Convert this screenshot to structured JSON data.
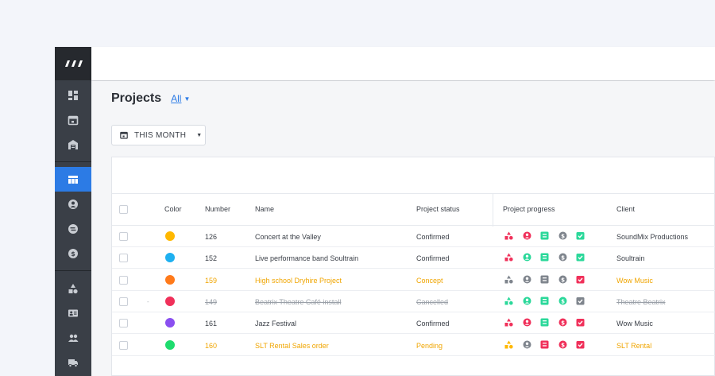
{
  "page": {
    "title": "Projects",
    "filter": "All"
  },
  "toolbar": {
    "period_label": "THIS MONTH"
  },
  "sidebar": {
    "items": [
      {
        "icon": "dashboard-icon"
      },
      {
        "icon": "calendar-icon"
      },
      {
        "icon": "warehouse-icon"
      },
      {
        "icon": "table-icon",
        "active": true
      },
      {
        "icon": "user-circle-icon"
      },
      {
        "icon": "swap-icon"
      },
      {
        "icon": "dollar-icon"
      },
      {
        "icon": "shapes-icon"
      },
      {
        "icon": "id-card-icon"
      },
      {
        "icon": "people-icon"
      },
      {
        "icon": "truck-icon"
      }
    ]
  },
  "table": {
    "columns": {
      "color": "Color",
      "number": "Number",
      "name": "Name",
      "status": "Project status",
      "progress": "Project progress",
      "client": "Client"
    },
    "rows": [
      {
        "color": "#ffb800",
        "number": "126",
        "name": "Concert at the Valley",
        "status": "Confirmed",
        "client": "SoundMix Productions",
        "style": "normal",
        "progress": [
          "#f0305a",
          "#f0305a",
          "#2bd89a",
          "#7f858d",
          "#2bd89a"
        ]
      },
      {
        "color": "#1eb0f0",
        "number": "152",
        "name": "Live performance band Soultrain",
        "status": "Confirmed",
        "client": "Soultrain",
        "style": "normal",
        "progress": [
          "#f0305a",
          "#2bd89a",
          "#2bd89a",
          "#7f858d",
          "#2bd89a"
        ]
      },
      {
        "color": "#ff7a1a",
        "number": "159",
        "name": "High school Dryhire Project",
        "status": "Concept",
        "client": "Wow Music",
        "style": "concept",
        "progress": [
          "#7f858d",
          "#7f858d",
          "#7f858d",
          "#7f858d",
          "#f0305a"
        ]
      },
      {
        "color": "#f0305a",
        "number": "149",
        "name": "Beatrix Theatre Café install",
        "status": "Cancelled",
        "client": "Theatre Beatrix",
        "style": "cancelled",
        "progress": [
          "#2bd89a",
          "#2bd89a",
          "#2bd89a",
          "#2bd89a",
          "#7f858d"
        ]
      },
      {
        "color": "#8a4ff0",
        "number": "161",
        "name": "Jazz Festival",
        "status": "Confirmed",
        "client": "Wow Music",
        "style": "normal",
        "progress": [
          "#f0305a",
          "#f0305a",
          "#2bd89a",
          "#f0305a",
          "#f0305a"
        ]
      },
      {
        "color": "#1edc6e",
        "number": "160",
        "name": "SLT Rental Sales order",
        "status": "Pending",
        "client": "SLT Rental",
        "style": "pending",
        "progress": [
          "#ffb800",
          "#7f858d",
          "#f0305a",
          "#f0305a",
          "#f0305a"
        ]
      }
    ]
  }
}
